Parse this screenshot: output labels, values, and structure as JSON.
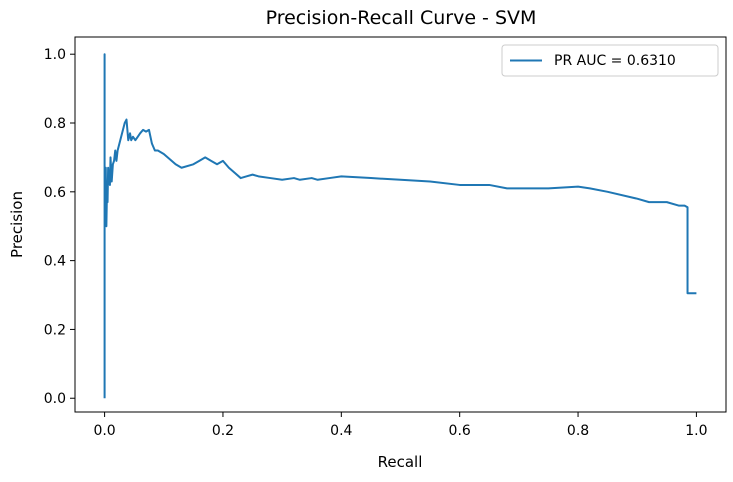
{
  "chart_data": {
    "type": "line",
    "title": "Precision-Recall Curve - SVM",
    "xlabel": "Recall",
    "ylabel": "Precision",
    "xlim": [
      -0.05,
      1.05
    ],
    "ylim": [
      -0.04,
      1.05
    ],
    "xticks": [
      "0.0",
      "0.2",
      "0.4",
      "0.6",
      "0.8",
      "1.0"
    ],
    "yticks": [
      "0.0",
      "0.2",
      "0.4",
      "0.6",
      "0.8",
      "1.0"
    ],
    "grid": false,
    "legend_position": "top-right",
    "series": [
      {
        "name": "PR AUC = 0.6310",
        "color": "#1f77b4",
        "x": [
          0.0,
          0.0,
          0.0,
          0.002,
          0.003,
          0.004,
          0.005,
          0.006,
          0.007,
          0.009,
          0.01,
          0.012,
          0.014,
          0.016,
          0.018,
          0.02,
          0.022,
          0.025,
          0.028,
          0.031,
          0.034,
          0.037,
          0.04,
          0.043,
          0.045,
          0.048,
          0.052,
          0.056,
          0.06,
          0.065,
          0.07,
          0.075,
          0.08,
          0.085,
          0.09,
          0.1,
          0.12,
          0.13,
          0.15,
          0.16,
          0.17,
          0.18,
          0.19,
          0.2,
          0.21,
          0.22,
          0.23,
          0.24,
          0.25,
          0.26,
          0.28,
          0.3,
          0.32,
          0.33,
          0.35,
          0.36,
          0.38,
          0.4,
          0.45,
          0.5,
          0.55,
          0.6,
          0.65,
          0.68,
          0.7,
          0.75,
          0.8,
          0.82,
          0.85,
          0.9,
          0.92,
          0.95,
          0.97,
          0.98,
          0.985,
          0.985,
          1.0
        ],
        "y": [
          0.0,
          1.0,
          0.5,
          0.67,
          0.5,
          0.6,
          0.57,
          0.67,
          0.63,
          0.62,
          0.7,
          0.63,
          0.68,
          0.69,
          0.72,
          0.69,
          0.72,
          0.74,
          0.76,
          0.78,
          0.8,
          0.81,
          0.75,
          0.77,
          0.75,
          0.76,
          0.75,
          0.76,
          0.77,
          0.78,
          0.775,
          0.78,
          0.74,
          0.72,
          0.72,
          0.71,
          0.68,
          0.67,
          0.68,
          0.69,
          0.7,
          0.69,
          0.68,
          0.69,
          0.67,
          0.655,
          0.64,
          0.645,
          0.65,
          0.645,
          0.64,
          0.635,
          0.64,
          0.635,
          0.64,
          0.635,
          0.64,
          0.645,
          0.64,
          0.635,
          0.63,
          0.62,
          0.62,
          0.61,
          0.61,
          0.61,
          0.615,
          0.61,
          0.6,
          0.58,
          0.57,
          0.57,
          0.56,
          0.56,
          0.555,
          0.305,
          0.305
        ]
      }
    ]
  }
}
